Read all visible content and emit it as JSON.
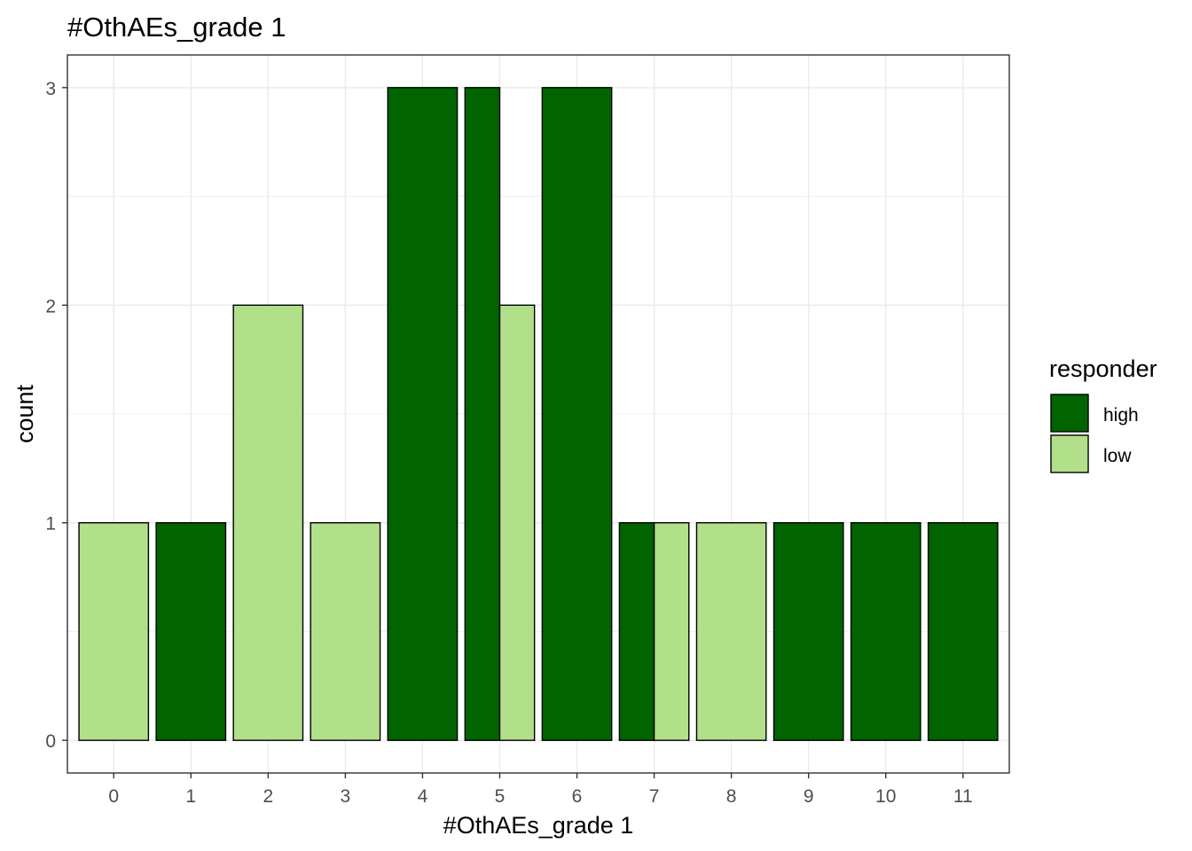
{
  "chart_data": {
    "type": "bar",
    "title": "#OthAEs_grade 1",
    "xlabel": "#OthAEs_grade 1",
    "ylabel": "count",
    "categories": [
      "0",
      "1",
      "2",
      "3",
      "4",
      "5",
      "6",
      "7",
      "8",
      "9",
      "10",
      "11"
    ],
    "yticks": [
      "0",
      "1",
      "2",
      "3"
    ],
    "ylim": [
      -0.15,
      3.15
    ],
    "grid": true,
    "legend": {
      "title": "responder",
      "position": "right"
    },
    "bars": [
      {
        "category": "0",
        "series": "low",
        "value": 1
      },
      {
        "category": "1",
        "series": "high",
        "value": 1
      },
      {
        "category": "2",
        "series": "low",
        "value": 2
      },
      {
        "category": "3",
        "series": "low",
        "value": 1
      },
      {
        "category": "4",
        "series": "high",
        "value": 3
      },
      {
        "category": "5",
        "series": "high",
        "value": 3
      },
      {
        "category": "5",
        "series": "low",
        "value": 2
      },
      {
        "category": "6",
        "series": "high",
        "value": 3
      },
      {
        "category": "7",
        "series": "high",
        "value": 1
      },
      {
        "category": "7",
        "series": "low",
        "value": 1
      },
      {
        "category": "8",
        "series": "low",
        "value": 1
      },
      {
        "category": "9",
        "series": "high",
        "value": 1
      },
      {
        "category": "10",
        "series": "high",
        "value": 1
      },
      {
        "category": "11",
        "series": "high",
        "value": 1
      }
    ],
    "series": [
      {
        "name": "high",
        "color": "#006400"
      },
      {
        "name": "low",
        "color": "#b2df8a"
      }
    ]
  }
}
